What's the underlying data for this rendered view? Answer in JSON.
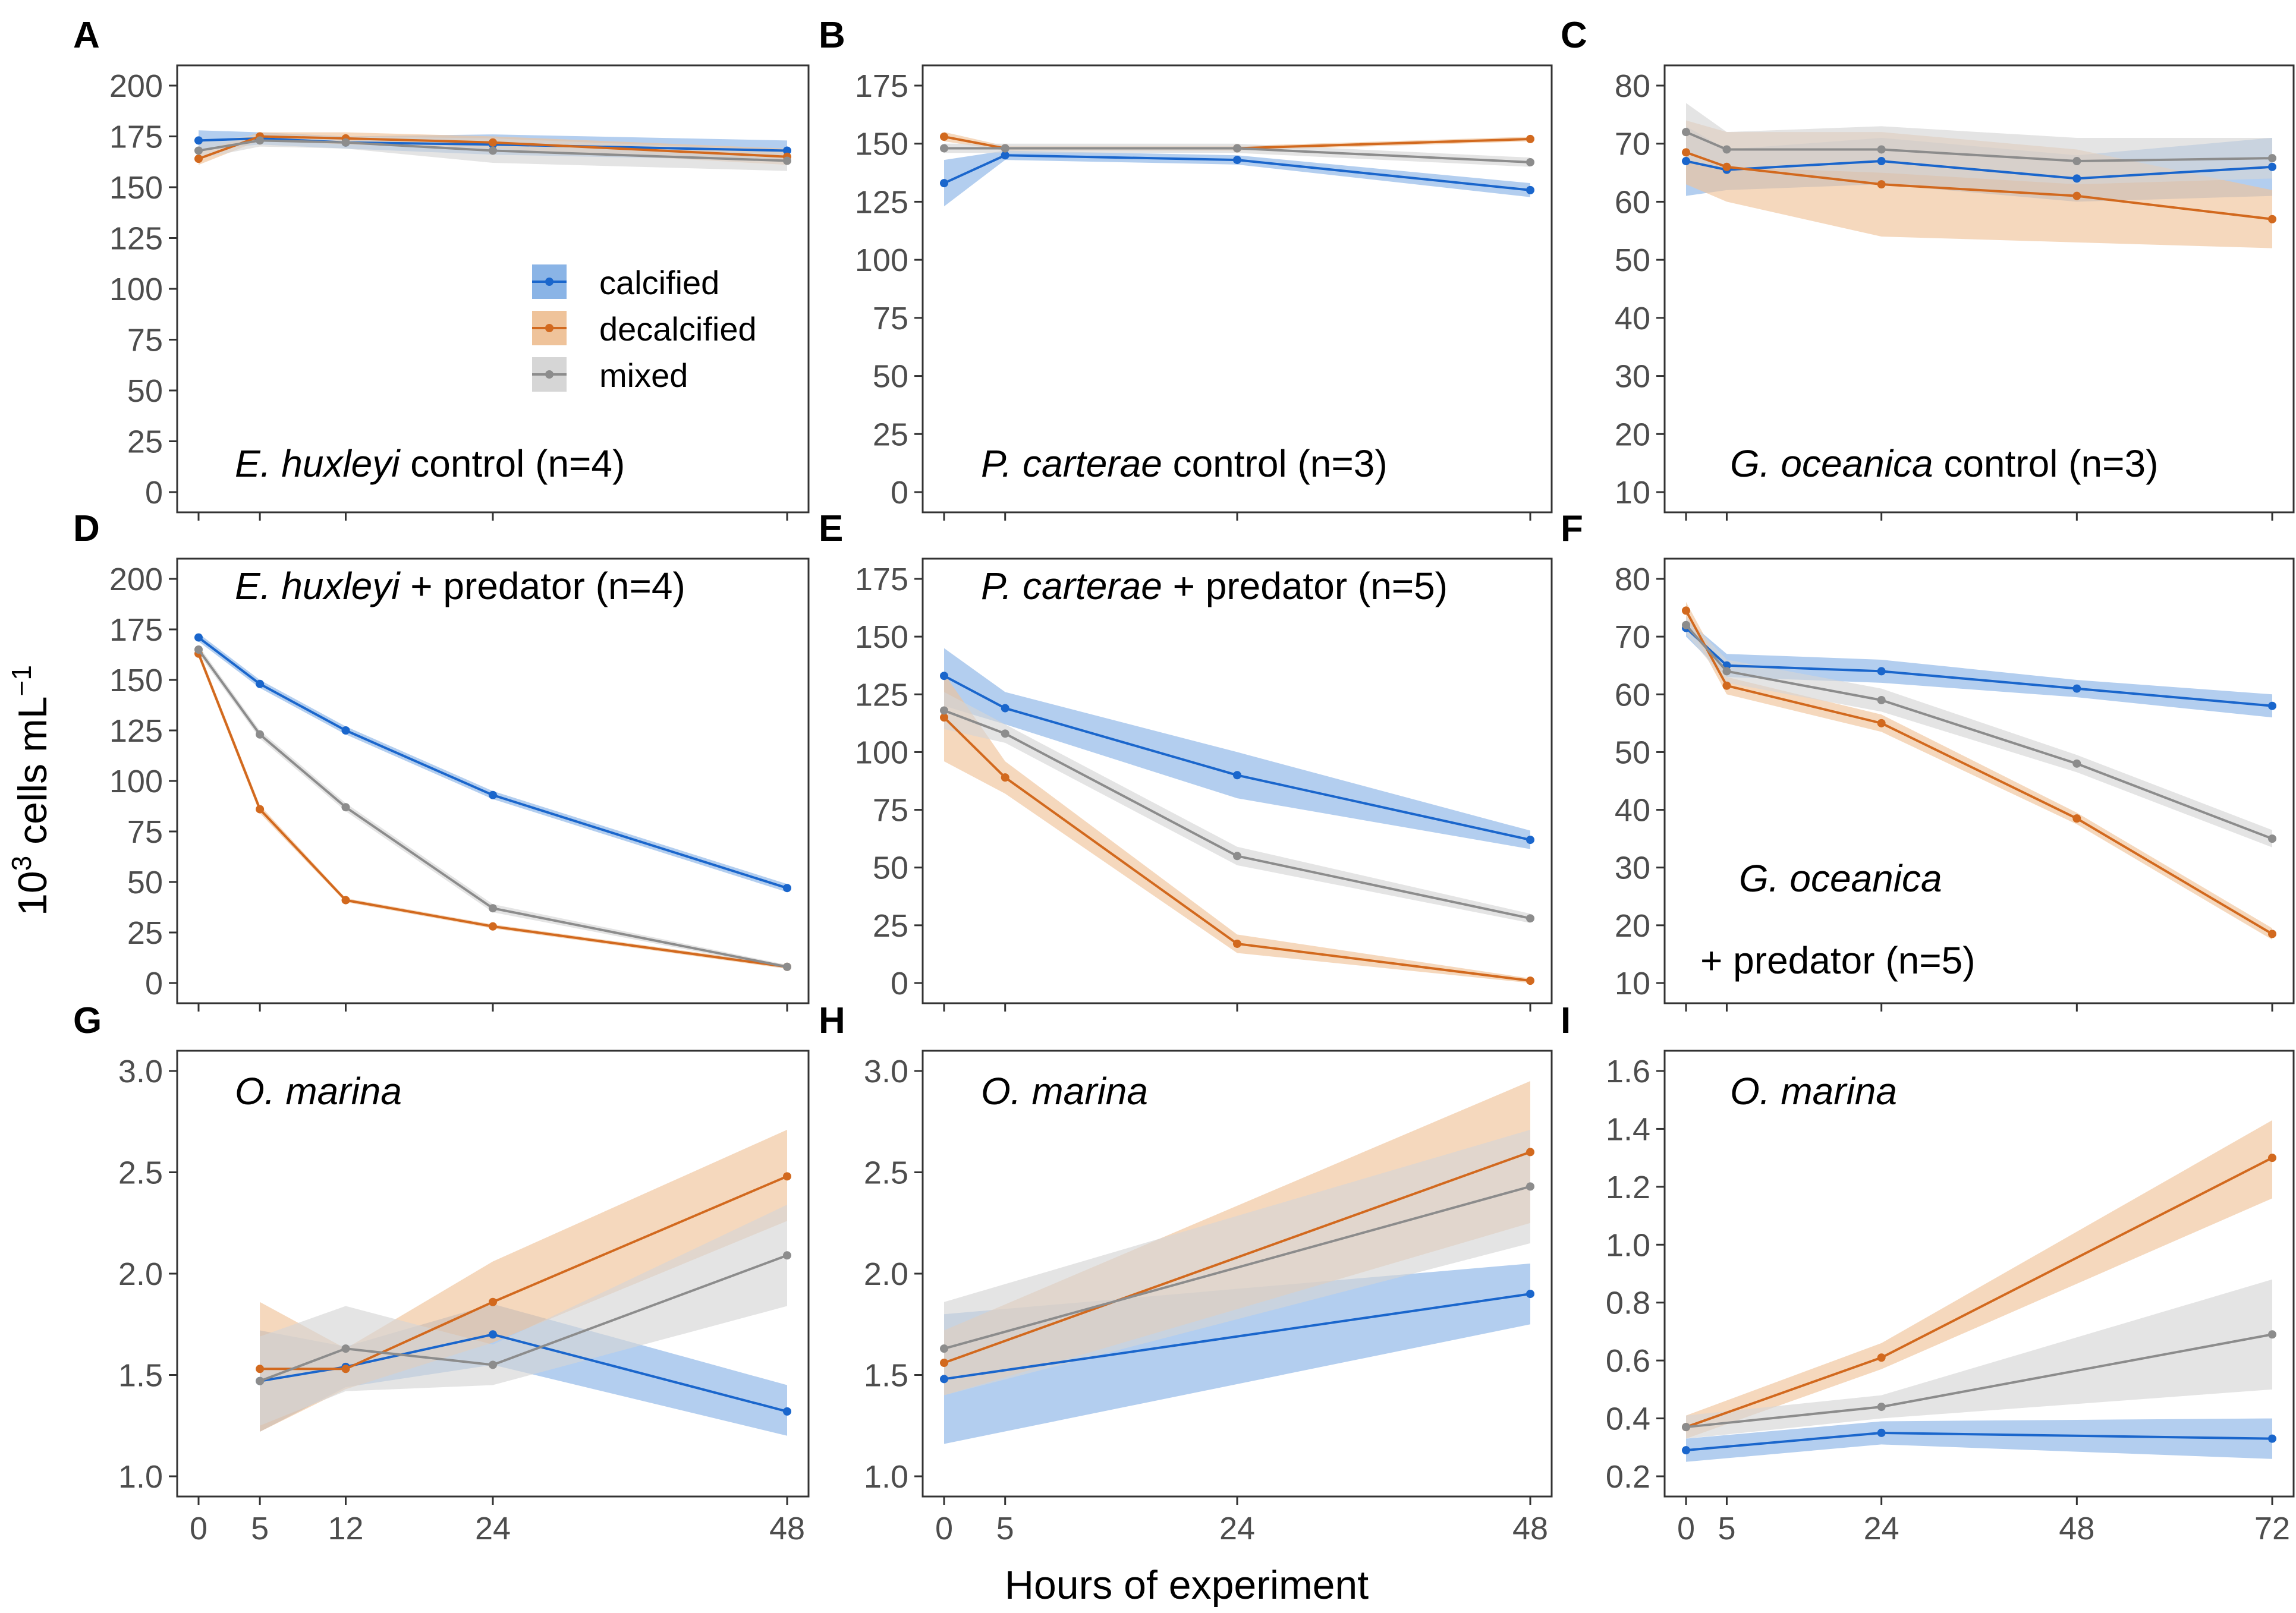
{
  "colors": {
    "calcified": "#1a66cc",
    "decalcified": "#d2691e",
    "mixed": "#8c8c8c",
    "calcified_band": "#8ab4e6",
    "decalcified_band": "#efc39a",
    "mixed_band": "#d6d6d6"
  },
  "figure": {
    "xlabel": "Hours of experiment",
    "ylabel_main": "10",
    "ylabel_sup": "3",
    "ylabel_rest": " cells mL",
    "ylabel_exp": "−1"
  },
  "legend": {
    "items": [
      {
        "key": "calcified",
        "label": "calcified"
      },
      {
        "key": "decalcified",
        "label": "decalcified"
      },
      {
        "key": "mixed",
        "label": "mixed"
      }
    ]
  },
  "chart_data": [
    {
      "panel": "A",
      "type": "line",
      "title_italic": "E. huxleyi",
      "title_rest": " control (n=4)",
      "x": [
        0,
        5,
        12,
        24,
        48
      ],
      "xlim": [
        0,
        48
      ],
      "ylim": [
        0,
        200
      ],
      "yticks": [
        0,
        25,
        50,
        75,
        100,
        125,
        150,
        175,
        200
      ],
      "xticks": [
        0,
        5,
        12,
        24,
        48
      ],
      "show_xtick_labels": false,
      "series": [
        {
          "name": "calcified",
          "values": [
            173,
            174,
            172,
            171,
            168
          ],
          "lower": [
            168,
            171,
            169,
            166,
            163
          ],
          "upper": [
            178,
            177,
            175,
            176,
            173
          ]
        },
        {
          "name": "decalcified",
          "values": [
            164,
            175,
            174,
            172,
            165
          ],
          "lower": [
            161,
            173,
            171,
            169,
            161
          ],
          "upper": [
            167,
            177,
            177,
            175,
            169
          ]
        },
        {
          "name": "mixed",
          "values": [
            168,
            173,
            172,
            168,
            163
          ],
          "lower": [
            164,
            170,
            169,
            162,
            158
          ],
          "upper": [
            172,
            176,
            175,
            174,
            168
          ]
        }
      ]
    },
    {
      "panel": "B",
      "type": "line",
      "title_italic": "P. carterae",
      "title_rest": " control (n=3)",
      "x": [
        0,
        5,
        24,
        48
      ],
      "xlim": [
        0,
        48
      ],
      "ylim": [
        0,
        175
      ],
      "yticks": [
        0,
        25,
        50,
        75,
        100,
        125,
        150,
        175
      ],
      "xticks": [
        0,
        5,
        24,
        48
      ],
      "show_xtick_labels": false,
      "series": [
        {
          "name": "calcified",
          "values": [
            133,
            145,
            143,
            130
          ],
          "lower": [
            123,
            143,
            141,
            127
          ],
          "upper": [
            143,
            147,
            145,
            133
          ]
        },
        {
          "name": "decalcified",
          "values": [
            153,
            148,
            148,
            152
          ],
          "lower": [
            151,
            147,
            147,
            151
          ],
          "upper": [
            155,
            149,
            149,
            153
          ]
        },
        {
          "name": "mixed",
          "values": [
            148,
            148,
            148,
            142
          ],
          "lower": [
            146,
            146,
            146,
            140
          ],
          "upper": [
            150,
            150,
            150,
            144
          ]
        }
      ]
    },
    {
      "panel": "C",
      "type": "line",
      "title_italic": "G. oceanica",
      "title_rest": " control (n=3)",
      "x": [
        0,
        5,
        24,
        48,
        72
      ],
      "xlim": [
        0,
        72
      ],
      "ylim": [
        10,
        80
      ],
      "yticks": [
        10,
        20,
        30,
        40,
        50,
        60,
        70,
        80
      ],
      "xticks": [
        0,
        5,
        24,
        48,
        72
      ],
      "show_xtick_labels": false,
      "series": [
        {
          "name": "calcified",
          "values": [
            67,
            65.5,
            67,
            64,
            66
          ],
          "lower": [
            61,
            62,
            63,
            60,
            61
          ],
          "upper": [
            73,
            69,
            71,
            68,
            71
          ]
        },
        {
          "name": "decalcified",
          "values": [
            68.5,
            66,
            63,
            61,
            57
          ],
          "lower": [
            63,
            60,
            54,
            53,
            52
          ],
          "upper": [
            74,
            72,
            72,
            69,
            62
          ]
        },
        {
          "name": "mixed",
          "values": [
            72,
            69,
            69,
            67,
            67.5
          ],
          "lower": [
            67,
            66,
            65,
            63,
            64
          ],
          "upper": [
            77,
            72,
            73,
            71,
            71
          ]
        }
      ]
    },
    {
      "panel": "D",
      "type": "line",
      "title_italic": "E. huxleyi",
      "title_rest": " + predator (n=4)",
      "x": [
        0,
        5,
        12,
        24,
        48
      ],
      "xlim": [
        0,
        48
      ],
      "ylim": [
        0,
        200
      ],
      "yticks": [
        0,
        25,
        50,
        75,
        100,
        125,
        150,
        175,
        200
      ],
      "xticks": [
        0,
        5,
        12,
        24,
        48
      ],
      "show_xtick_labels": false,
      "series": [
        {
          "name": "calcified",
          "values": [
            171,
            148,
            125,
            93,
            47
          ],
          "lower": [
            169,
            146,
            123,
            91,
            45
          ],
          "upper": [
            173,
            150,
            127,
            95,
            49
          ]
        },
        {
          "name": "decalcified",
          "values": [
            163,
            86,
            41,
            28,
            8
          ],
          "lower": [
            161,
            84,
            40,
            27,
            7
          ],
          "upper": [
            165,
            88,
            42,
            29,
            9
          ]
        },
        {
          "name": "mixed",
          "values": [
            165,
            123,
            87,
            37,
            8
          ],
          "lower": [
            163,
            121,
            85,
            35,
            7
          ],
          "upper": [
            167,
            125,
            89,
            39,
            9
          ]
        }
      ]
    },
    {
      "panel": "E",
      "type": "line",
      "title_italic": "P. carterae",
      "title_rest": " + predator (n=5)",
      "x": [
        0,
        5,
        24,
        48
      ],
      "xlim": [
        0,
        48
      ],
      "ylim": [
        0,
        175
      ],
      "yticks": [
        0,
        25,
        50,
        75,
        100,
        125,
        150,
        175
      ],
      "xticks": [
        0,
        5,
        24,
        48
      ],
      "show_xtick_labels": false,
      "series": [
        {
          "name": "calcified",
          "values": [
            133,
            119,
            90,
            62
          ],
          "lower": [
            120,
            112,
            80,
            58
          ],
          "upper": [
            145,
            126,
            100,
            66
          ]
        },
        {
          "name": "decalcified",
          "values": [
            115,
            89,
            17,
            1
          ],
          "lower": [
            96,
            82,
            13,
            0
          ],
          "upper": [
            134,
            96,
            21,
            2
          ]
        },
        {
          "name": "mixed",
          "values": [
            118,
            108,
            55,
            28
          ],
          "lower": [
            110,
            104,
            51,
            26
          ],
          "upper": [
            126,
            112,
            59,
            30
          ]
        }
      ]
    },
    {
      "panel": "F",
      "type": "line",
      "title_italic": "G. oceanica",
      "title_rest": " + predator (n=5)",
      "x": [
        0,
        5,
        24,
        48,
        72
      ],
      "xlim": [
        0,
        72
      ],
      "ylim": [
        10,
        80
      ],
      "yticks": [
        10,
        20,
        30,
        40,
        50,
        60,
        70,
        80
      ],
      "xticks": [
        0,
        5,
        24,
        48,
        72
      ],
      "show_xtick_labels": false,
      "series": [
        {
          "name": "calcified",
          "values": [
            71.5,
            65,
            64,
            61,
            58
          ],
          "lower": [
            70,
            63,
            62,
            59.5,
            56
          ],
          "upper": [
            73,
            67,
            66,
            62.5,
            60
          ]
        },
        {
          "name": "decalcified",
          "values": [
            74.5,
            61.5,
            55,
            38.5,
            18.5
          ],
          "lower": [
            73,
            60,
            53.5,
            37.5,
            17.5
          ],
          "upper": [
            76,
            63,
            56.5,
            39.5,
            19.5
          ]
        },
        {
          "name": "mixed",
          "values": [
            72,
            64,
            59,
            48,
            35
          ],
          "lower": [
            70.5,
            62,
            57,
            46.5,
            33.5
          ],
          "upper": [
            73.5,
            66,
            61,
            49.5,
            36.5
          ]
        }
      ]
    },
    {
      "panel": "G",
      "type": "line",
      "title_italic": "O. marina",
      "title_rest": "",
      "x": [
        5,
        12,
        24,
        48
      ],
      "xlim": [
        0,
        48
      ],
      "ylim": [
        1.0,
        3.0
      ],
      "yticks": [
        1.0,
        1.5,
        2.0,
        2.5,
        3.0
      ],
      "xticks": [
        0,
        5,
        12,
        24,
        48
      ],
      "show_xtick_labels": true,
      "series": [
        {
          "name": "calcified",
          "values": [
            1.47,
            1.54,
            1.7,
            1.32
          ],
          "lower": [
            1.22,
            1.44,
            1.55,
            1.2
          ],
          "upper": [
            1.72,
            1.64,
            1.85,
            1.45
          ]
        },
        {
          "name": "decalcified",
          "values": [
            1.53,
            1.53,
            1.86,
            2.48
          ],
          "lower": [
            1.22,
            1.43,
            1.66,
            2.26
          ],
          "upper": [
            1.86,
            1.63,
            2.06,
            2.71
          ]
        },
        {
          "name": "mixed",
          "values": [
            1.47,
            1.63,
            1.55,
            2.09
          ],
          "lower": [
            1.25,
            1.42,
            1.45,
            1.84
          ],
          "upper": [
            1.69,
            1.84,
            1.65,
            2.34
          ]
        }
      ]
    },
    {
      "panel": "H",
      "type": "line",
      "title_italic": "O. marina",
      "title_rest": "",
      "x": [
        0,
        48
      ],
      "xlim": [
        0,
        48
      ],
      "ylim": [
        1.0,
        3.0
      ],
      "yticks": [
        1.0,
        1.5,
        2.0,
        2.5,
        3.0
      ],
      "xticks": [
        0,
        5,
        24,
        48
      ],
      "show_xtick_labels": true,
      "series": [
        {
          "name": "calcified",
          "values": [
            1.48,
            1.9
          ],
          "lower": [
            1.16,
            1.75
          ],
          "upper": [
            1.8,
            2.05
          ]
        },
        {
          "name": "decalcified",
          "values": [
            1.56,
            2.6
          ],
          "lower": [
            1.4,
            2.25
          ],
          "upper": [
            1.72,
            2.95
          ]
        },
        {
          "name": "mixed",
          "values": [
            1.63,
            2.43
          ],
          "lower": [
            1.4,
            2.15
          ],
          "upper": [
            1.86,
            2.71
          ]
        }
      ]
    },
    {
      "panel": "I",
      "type": "line",
      "title_italic": "O. marina",
      "title_rest": "",
      "x": [
        0,
        24,
        72
      ],
      "xlim": [
        0,
        72
      ],
      "ylim": [
        0.2,
        1.6
      ],
      "yticks": [
        0.2,
        0.4,
        0.6,
        0.8,
        1.0,
        1.2,
        1.4,
        1.6
      ],
      "xticks": [
        0,
        5,
        24,
        48,
        72
      ],
      "show_xtick_labels": true,
      "series": [
        {
          "name": "calcified",
          "values": [
            0.29,
            0.35,
            0.33
          ],
          "lower": [
            0.25,
            0.31,
            0.26
          ],
          "upper": [
            0.33,
            0.39,
            0.4
          ]
        },
        {
          "name": "decalcified",
          "values": [
            0.37,
            0.61,
            1.3
          ],
          "lower": [
            0.33,
            0.57,
            1.16
          ],
          "upper": [
            0.41,
            0.66,
            1.43
          ]
        },
        {
          "name": "mixed",
          "values": [
            0.37,
            0.44,
            0.69
          ],
          "lower": [
            0.33,
            0.4,
            0.5
          ],
          "upper": [
            0.41,
            0.48,
            0.88
          ]
        }
      ]
    }
  ]
}
